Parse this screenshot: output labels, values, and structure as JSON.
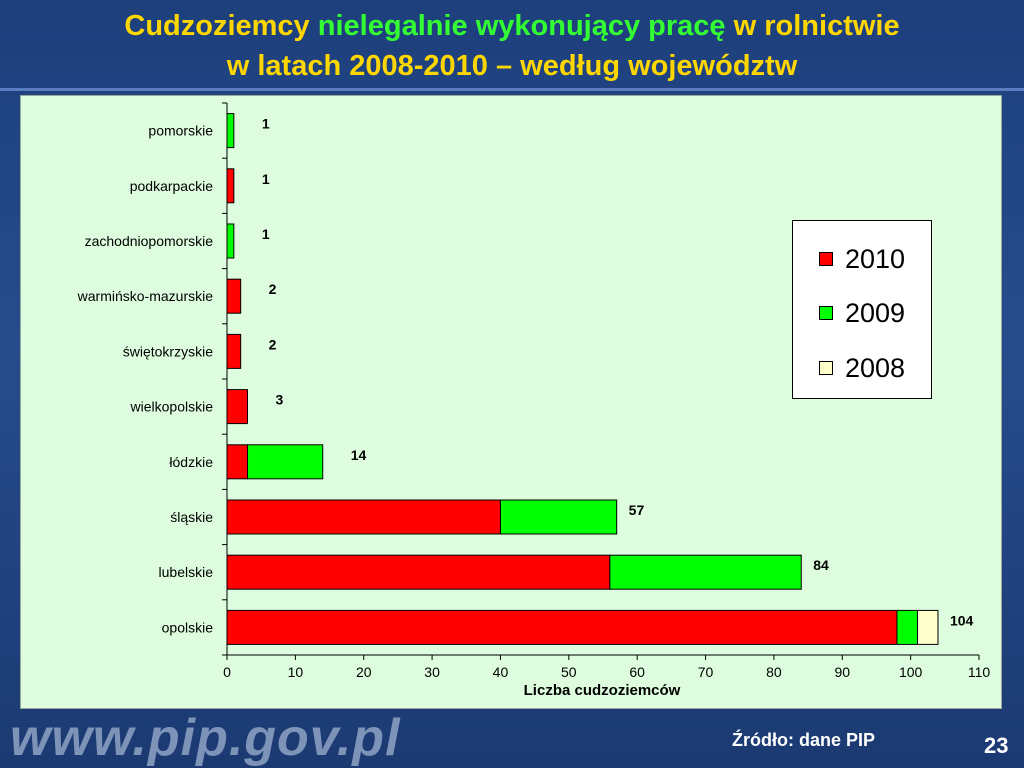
{
  "slide": {
    "title_line1_part1": "Cudzoziemcy",
    "title_line1_part2": "nielegalnie wykonujący pracę",
    "title_line1_part3": "w rolnictwie",
    "title_line2": "w latach 2008-2010 – według województw",
    "url": "www.pip.gov.pl",
    "source": "Źródło: dane PIP",
    "page_number": "23",
    "accent_yellow": "#ffd700",
    "accent_green": "#33ff33"
  },
  "chart_data": {
    "type": "bar",
    "orientation": "horizontal",
    "stacked": true,
    "categories": [
      "pomorskie",
      "podkarpackie",
      "zachodniopomorskie",
      "warmińsko-mazurskie",
      "świętokrzyskie",
      "wielkopolskie",
      "łódzkie",
      "śląskie",
      "lubelskie",
      "opolskie"
    ],
    "series": [
      {
        "name": "2010",
        "color": "#ff0000",
        "values": [
          0,
          1,
          0,
          2,
          2,
          3,
          3,
          40,
          56,
          98
        ]
      },
      {
        "name": "2009",
        "color": "#00ff00",
        "values": [
          1,
          0,
          1,
          0,
          0,
          0,
          11,
          17,
          28,
          3
        ]
      },
      {
        "name": "2008",
        "color": "#ffffcc",
        "values": [
          0,
          0,
          0,
          0,
          0,
          0,
          0,
          0,
          0,
          3
        ]
      }
    ],
    "totals": [
      1,
      1,
      1,
      2,
      2,
      3,
      14,
      57,
      84,
      104
    ],
    "xlabel": "Liczba cudzoziemców",
    "xlim": [
      0,
      110
    ],
    "xticks": [
      0,
      10,
      20,
      30,
      40,
      50,
      60,
      70,
      80,
      90,
      100,
      110
    ],
    "legend_position": "right",
    "grid": false
  }
}
